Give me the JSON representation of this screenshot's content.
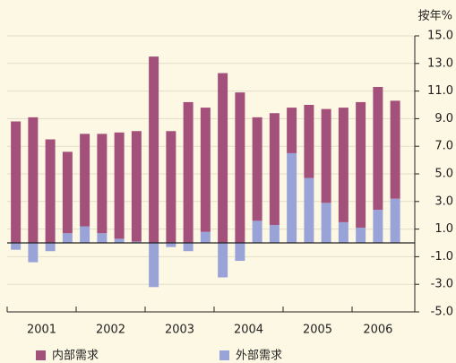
{
  "chart_data": {
    "type": "bar",
    "stacked": true,
    "y_unit": "按年%",
    "categories": [
      null,
      null,
      null,
      null,
      null,
      null,
      null,
      null,
      null,
      null,
      null,
      null,
      null,
      null,
      null,
      null,
      null,
      null,
      null,
      null,
      null,
      null,
      null
    ],
    "groups": [
      "2001",
      "2002",
      "2003",
      "2004",
      "2005",
      "2006"
    ],
    "series": [
      {
        "name": "内部需求",
        "color": "#a3507a",
        "values": [
          8.8,
          9.1,
          7.5,
          5.9,
          6.7,
          7.2,
          7.7,
          8.0,
          13.5,
          8.1,
          10.2,
          9.0,
          12.3,
          10.9,
          7.5,
          8.1,
          3.3,
          5.3,
          6.8,
          8.3,
          9.1,
          8.9,
          7.1
        ]
      },
      {
        "name": "外部需求",
        "color": "#9aa3d8",
        "values": [
          -0.5,
          -1.4,
          -0.6,
          0.7,
          1.2,
          0.7,
          0.3,
          0.1,
          -3.2,
          -0.3,
          -0.6,
          0.8,
          -2.5,
          -1.3,
          1.6,
          1.3,
          6.5,
          4.7,
          2.9,
          1.5,
          1.1,
          2.4,
          3.2
        ]
      }
    ],
    "ylim": [
      -5,
      15
    ],
    "yticks": [
      {
        "value": -5,
        "label": "-5.0"
      },
      {
        "value": -3,
        "label": "-3.0"
      },
      {
        "value": -1,
        "label": "-1.0"
      },
      {
        "value": 1,
        "label": "1.0"
      },
      {
        "value": 3,
        "label": "3.0"
      },
      {
        "value": 5,
        "label": "5.0"
      },
      {
        "value": 7,
        "label": "7.0"
      },
      {
        "value": 9,
        "label": "9.0"
      },
      {
        "value": 11,
        "label": "11.0"
      },
      {
        "value": 13,
        "label": "13.0"
      },
      {
        "value": 15,
        "label": "15.0"
      }
    ],
    "grid": true,
    "legend": "bottom"
  }
}
